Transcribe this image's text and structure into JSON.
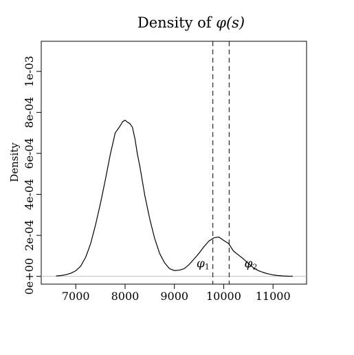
{
  "chart_data": {
    "type": "line",
    "title": "Density of φ(s)",
    "title_plain": "Density of ",
    "title_math": "φ(s)",
    "xlabel": "",
    "ylabel": "Density",
    "xlim": [
      6300,
      11680
    ],
    "ylim": [
      -3.8e-05,
      0.001147
    ],
    "x_ticks": [
      7000,
      8000,
      9000,
      10000,
      11000
    ],
    "x_tick_labels": [
      "7000",
      "8000",
      "9000",
      "10000",
      "11000"
    ],
    "y_ticks": [
      0,
      0.0002,
      0.0004,
      0.0006,
      0.0008,
      0.001
    ],
    "y_tick_labels": [
      "0e+00",
      "2e-04",
      "4e-04",
      "6e-04",
      "8e-04",
      "1e-03"
    ],
    "grid": false,
    "baseline_y": 0,
    "colors": {
      "line": "#000000",
      "baseline": "#bebebe"
    },
    "vertical_lines": [
      {
        "x": 9780,
        "style": "dashed"
      },
      {
        "x": 10110,
        "style": "dashed"
      }
    ],
    "annotations": [
      {
        "text": "φ1",
        "main": "φ",
        "sub": "1",
        "x": 9580,
        "y": 4.5e-05
      },
      {
        "text": "φ2",
        "main": "φ",
        "sub": "2",
        "x": 10550,
        "y": 4.5e-05
      }
    ],
    "series": [
      {
        "x": [
          6600,
          6700,
          6800,
          6900,
          7000,
          7100,
          7200,
          7300,
          7400,
          7500,
          7600,
          7700,
          7800,
          7900,
          7950,
          8000,
          8050,
          8100,
          8150,
          8200,
          8250,
          8300,
          8400,
          8500,
          8600,
          8700,
          8800,
          8900,
          9000,
          9100,
          9200,
          9300,
          9400,
          9500,
          9600,
          9700,
          9800,
          9900,
          10000,
          10100,
          10150,
          10200,
          10300,
          10400,
          10500,
          10600,
          10700,
          10800,
          10900,
          11000,
          11100,
          11200,
          11300,
          11400
        ],
        "y": [
          2e-06,
          4e-06,
          8e-06,
          1.5e-05,
          2.7e-05,
          5e-05,
          9.3e-05,
          0.000158,
          0.00025,
          0.000355,
          0.000472,
          0.000594,
          0.0007,
          0.000734,
          0.000755,
          0.000762,
          0.000752,
          0.000745,
          0.000727,
          0.000672,
          0.000596,
          0.000536,
          0.000394,
          0.000281,
          0.000185,
          0.000112,
          6.6e-05,
          3.8e-05,
          2.8e-05,
          3e-05,
          3.8e-05,
          5.8e-05,
          8.5e-05,
          0.000113,
          0.000145,
          0.000172,
          0.000188,
          0.000192,
          0.000175,
          0.00016,
          0.000141,
          0.000123,
          0.000104,
          8.5e-05,
          6.3e-05,
          4.2e-05,
          2.8e-05,
          1.9e-05,
          1.2e-05,
          7e-06,
          4e-06,
          2e-06,
          1e-06,
          5e-07
        ]
      }
    ]
  }
}
